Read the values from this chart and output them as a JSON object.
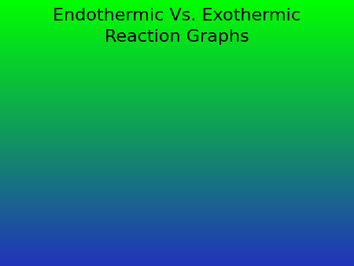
{
  "title_line1": "Endothermic Vs. Exothermic",
  "title_line2": "Reaction Graphs",
  "title_fontsize": 16,
  "title_color": "#000000",
  "gradient_top_color": "#00ff00",
  "gradient_bottom_color": "#2233bb",
  "fig_width": 4.5,
  "fig_height": 3.38,
  "dpi": 100
}
